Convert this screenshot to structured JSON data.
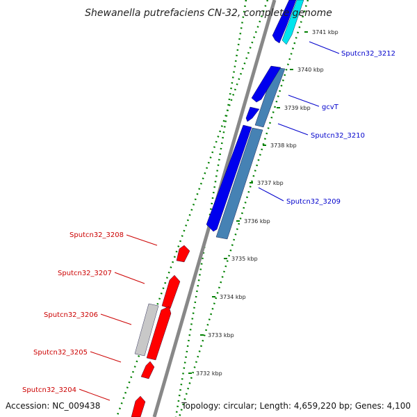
{
  "title": "Shewanella putrefaciens CN-32, complete genome",
  "accession": "Accession: NC_009438",
  "topology": "Topology: circular; Length: 4,659,220 bp; Genes: 4,100",
  "colors": {
    "forward_label": "#0000cc",
    "reverse_label": "#cc0000",
    "backbone": "#888888",
    "tick_mark": "#008000",
    "blue_gene": "#0000ee",
    "steel_gene": "#4682b4",
    "cyan_gene": "#00e5ee",
    "red_gene": "#ff0000",
    "gray_gene": "#c8c8c8"
  },
  "kbp_ticks": [
    "3732 kbp",
    "3733 kbp",
    "3734 kbp",
    "3735 kbp",
    "3736 kbp",
    "3737 kbp",
    "3738 kbp",
    "3739 kbp",
    "3740 kbp",
    "3741 kbp"
  ],
  "forward_genes": [
    {
      "label": "Sputcn32_3212"
    },
    {
      "label": "gcvT"
    },
    {
      "label": "Sputcn32_3210"
    },
    {
      "label": "Sputcn32_3209"
    }
  ],
  "reverse_genes": [
    {
      "label": "Sputcn32_3208"
    },
    {
      "label": "Sputcn32_3207"
    },
    {
      "label": "Sputcn32_3206"
    },
    {
      "label": "Sputcn32_3205"
    },
    {
      "label": "Sputcn32_3204"
    }
  ]
}
